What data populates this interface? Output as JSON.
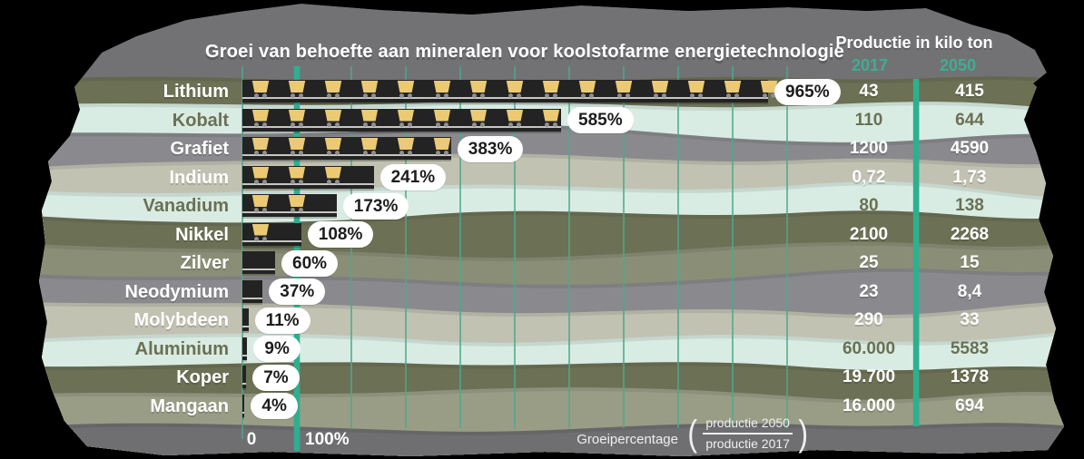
{
  "title": "Groei van behoefte aan mineralen voor koolstofarme energietechnologie",
  "production_header": {
    "label": "Productie in kilo ton",
    "col_2017": "2017",
    "col_2050": "2050"
  },
  "axis": {
    "zero_label": "0",
    "hundred_label": "100%"
  },
  "footnote": {
    "label": "Groeipercentage",
    "paren_open": "(",
    "fraction_top": "productie 2050",
    "fraction_bottom": "productie 2017",
    "paren_close": ")"
  },
  "rows": [
    {
      "mineral": "Lithium",
      "growth_label": "965%",
      "growth_pct": 965,
      "cart_icons": 15,
      "production_2017": "43",
      "production_2050": "415",
      "band": "olive"
    },
    {
      "mineral": "Kobalt",
      "growth_label": "585%",
      "growth_pct": 585,
      "cart_icons": 9,
      "production_2017": "110",
      "production_2050": "644",
      "band": "mint"
    },
    {
      "mineral": "Grafiet",
      "growth_label": "383%",
      "growth_pct": 383,
      "cart_icons": 6,
      "production_2017": "1200",
      "production_2050": "4590",
      "band": "gray"
    },
    {
      "mineral": "Indium",
      "growth_label": "241%",
      "growth_pct": 241,
      "cart_icons": 3,
      "production_2017": "0,72",
      "production_2050": "1,73",
      "band": "beige"
    },
    {
      "mineral": "Vanadium",
      "growth_label": "173%",
      "growth_pct": 173,
      "cart_icons": 2,
      "production_2017": "80",
      "production_2050": "138",
      "band": "mint"
    },
    {
      "mineral": "Nikkel",
      "growth_label": "108%",
      "growth_pct": 108,
      "cart_icons": 1,
      "production_2017": "2100",
      "production_2050": "2268",
      "band": "olive"
    },
    {
      "mineral": "Zilver",
      "growth_label": "60%",
      "growth_pct": 60,
      "cart_icons": 0,
      "production_2017": "25",
      "production_2050": "15",
      "band": "sageD"
    },
    {
      "mineral": "Neodymium",
      "growth_label": "37%",
      "growth_pct": 37,
      "cart_icons": 0,
      "production_2017": "23",
      "production_2050": "8,4",
      "band": "gray"
    },
    {
      "mineral": "Molybdeen",
      "growth_label": "11%",
      "growth_pct": 11,
      "cart_icons": 0,
      "production_2017": "290",
      "production_2050": "33",
      "band": "beige"
    },
    {
      "mineral": "Aluminium",
      "growth_label": "9%",
      "growth_pct": 9,
      "cart_icons": 0,
      "production_2017": "60.000",
      "production_2050": "5583",
      "band": "mint"
    },
    {
      "mineral": "Koper",
      "growth_label": "7%",
      "growth_pct": 7,
      "cart_icons": 0,
      "production_2017": "19.700",
      "production_2050": "1378",
      "band": "olive"
    },
    {
      "mineral": "Mangaan",
      "growth_label": "4%",
      "growth_pct": 4,
      "cart_icons": 0,
      "production_2017": "16.000",
      "production_2050": "694",
      "band": "sageL"
    }
  ],
  "icons": {
    "bar_icon": "mine-cart-icon"
  },
  "theme": {
    "top_gray": "#727275",
    "footer_gray": "#6f6f72",
    "olive": "#6c7054",
    "mint": "#d9ece3",
    "gray": "#8a8a8e",
    "beige": "#c2c2b3",
    "sageD": "#8b8e76",
    "sageL": "#9a9d86",
    "olive_text": "#6b7053",
    "teal_header": "#3fae91",
    "grid_thin": "#4ca98e",
    "grid_thick": "#2eaf8f",
    "bar_dark": "#232323",
    "rail": "#c6c6c2",
    "cart_yellow": "#ecca73",
    "wheel_gray": "#8f8f8f",
    "pill_bg": "#ffffff",
    "pill_text": "#1d1d1d"
  },
  "chart_data": {
    "type": "bar",
    "orientation": "horizontal",
    "title": "Groei van behoefte aan mineralen voor koolstofarme energietechnologie",
    "categories": [
      "Lithium",
      "Kobalt",
      "Grafiet",
      "Indium",
      "Vanadium",
      "Nikkel",
      "Zilver",
      "Neodymium",
      "Molybdeen",
      "Aluminium",
      "Koper",
      "Mangaan"
    ],
    "series": [
      {
        "name": "Groeipercentage (%)",
        "values": [
          965,
          585,
          383,
          241,
          173,
          108,
          60,
          37,
          11,
          9,
          7,
          4
        ]
      },
      {
        "name": "Productie 2017 (kilo ton)",
        "values": [
          43,
          110,
          1200,
          0.72,
          80,
          2100,
          25,
          23,
          290,
          60000,
          19700,
          16000
        ]
      },
      {
        "name": "Productie 2050 (kilo ton)",
        "values": [
          415,
          644,
          4590,
          1.73,
          138,
          2268,
          15,
          8.4,
          33,
          5583,
          1378,
          694
        ]
      }
    ],
    "xlabel": "Groeipercentage (productie 2050 / productie 2017)",
    "ylabel": "",
    "x_axis_ticks_labeled": [
      "0",
      "100%"
    ],
    "x_range_pct": [
      0,
      1000
    ],
    "gridlines_every_pct": 100,
    "grid": true,
    "reference_line_pct": 100,
    "value_labels": [
      "965%",
      "585%",
      "383%",
      "241%",
      "173%",
      "108%",
      "60%",
      "37%",
      "11%",
      "9%",
      "7%",
      "4%"
    ],
    "legend_position": "none",
    "units_note": "Productie in kilo ton"
  }
}
